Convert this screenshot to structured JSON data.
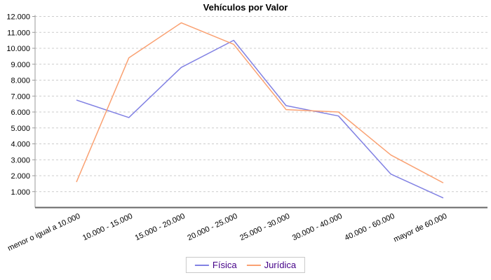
{
  "chart_data": {
    "type": "line",
    "title": "Vehículos por Valor",
    "categories": [
      "menor o igual a 10.000",
      "10.000 - 15.000",
      "15.000 - 20.000",
      "20.000 - 25.000",
      "25.000 - 30.000",
      "30.000 - 40.000",
      "40.000 - 60.000",
      "mayor de 60.000"
    ],
    "series": [
      {
        "name": "Física",
        "color": "#8181e3",
        "values": [
          6750,
          5650,
          8800,
          10500,
          6400,
          5750,
          2100,
          600
        ]
      },
      {
        "name": "Jurídica",
        "color": "#faa172",
        "values": [
          1600,
          9400,
          11600,
          10250,
          6150,
          6000,
          3300,
          1550
        ]
      }
    ],
    "xlabel": "",
    "ylabel": "",
    "ylim": [
      0,
      12000
    ],
    "y_tick_labels": [
      "1.000",
      "2.000",
      "3.000",
      "4.000",
      "5.000",
      "6.000",
      "7.000",
      "8.000",
      "9.000",
      "10.000",
      "11.000",
      "12.000"
    ],
    "grid": "horizontal-dashed",
    "legend_position": "bottom-center",
    "colors": {
      "grid_line": "#cccccc",
      "y_axis_line": "#999999",
      "x_axis_line": "#666666",
      "tick_text": "#000000",
      "legend_text": "#440088",
      "legend_border": "#c8c8c8",
      "background": "#ffffff"
    }
  }
}
